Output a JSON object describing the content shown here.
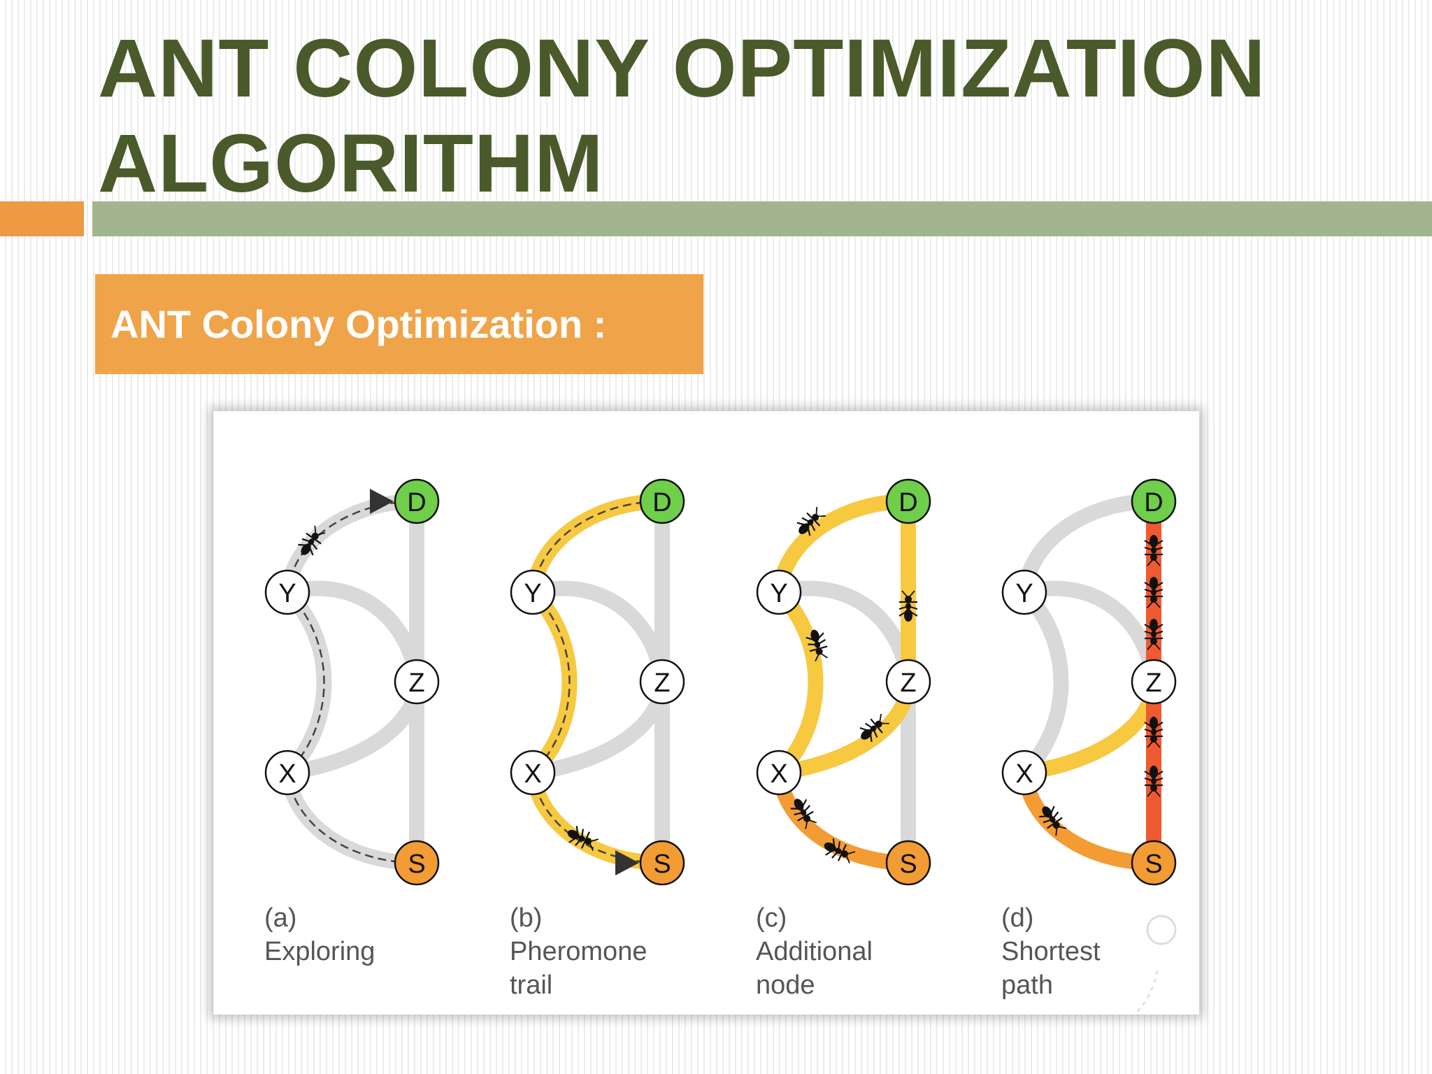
{
  "slide": {
    "title": "ANT COLONY OPTIMIZATION ALGORITHM",
    "subtitle": "ANT Colony Optimization :"
  },
  "colors": {
    "title_text": "#4a5a2a",
    "rule_orange": "#ee9a45",
    "rule_green": "#a3b590",
    "subtitle_box": "#f0a449",
    "track_gray": "#d9d9d9",
    "pheromone_yellow": "#f7c940",
    "pheromone_orange": "#f39c34",
    "pheromone_red": "#ef5a30",
    "node_destination": "#6fce4a",
    "node_source": "#f39c34",
    "node_intermediate": "#ffffff"
  },
  "figure": {
    "nodes": {
      "destination": "D",
      "source": "S",
      "y": "Y",
      "z": "Z",
      "x": "X"
    },
    "panels": [
      {
        "tag": "(a)",
        "caption_line1": "Exploring",
        "caption_line2": ""
      },
      {
        "tag": "(b)",
        "caption_line1": "Pheromone",
        "caption_line2": "trail"
      },
      {
        "tag": "(c)",
        "caption_line1": "Additional",
        "caption_line2": "node"
      },
      {
        "tag": "(d)",
        "caption_line1": "Shortest",
        "caption_line2": "path"
      }
    ]
  }
}
